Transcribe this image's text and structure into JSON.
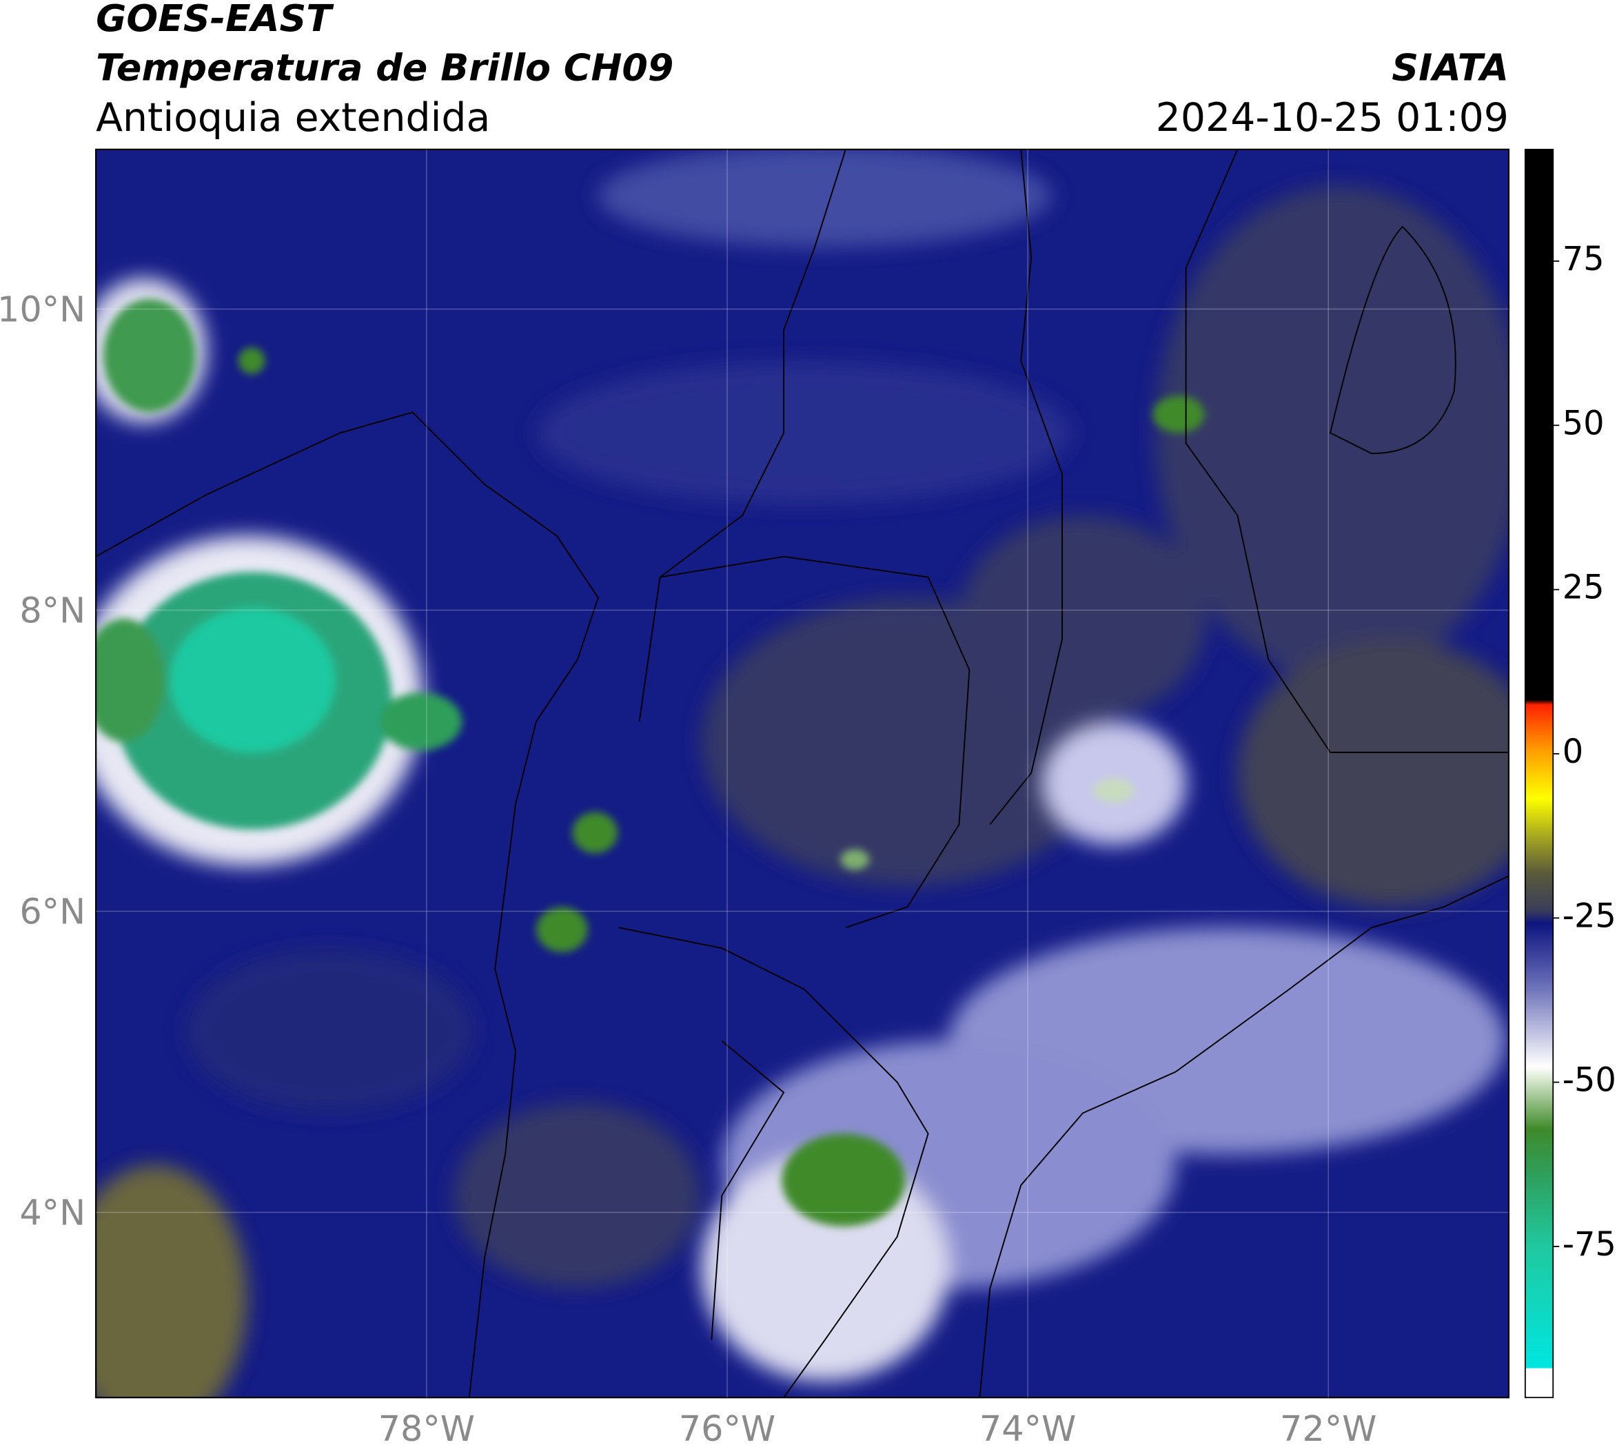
{
  "header": {
    "title": "GOES-EAST",
    "subtitle": "Temperatura de Brillo CH09",
    "region": "Antioquia extendida",
    "source": "SIATA",
    "timestamp": "2024-10-25 01:09"
  },
  "map": {
    "xlim": [
      -80.2,
      -70.8
    ],
    "ylim": [
      2.77,
      11.06
    ],
    "xticks": [
      {
        "value": -78,
        "label": "78°W"
      },
      {
        "value": -76,
        "label": "76°W"
      },
      {
        "value": -74,
        "label": "74°W"
      },
      {
        "value": -72,
        "label": "72°W"
      }
    ],
    "yticks": [
      {
        "value": 10,
        "label": "10°N"
      },
      {
        "value": 8,
        "label": "8°N"
      },
      {
        "value": 6,
        "label": "6°N"
      },
      {
        "value": 4,
        "label": "4°N"
      }
    ],
    "grid": true
  },
  "colorbar": {
    "lim": [
      -98,
      92
    ],
    "ticks": [
      75,
      50,
      25,
      0,
      -25,
      -50,
      -75
    ]
  }
}
